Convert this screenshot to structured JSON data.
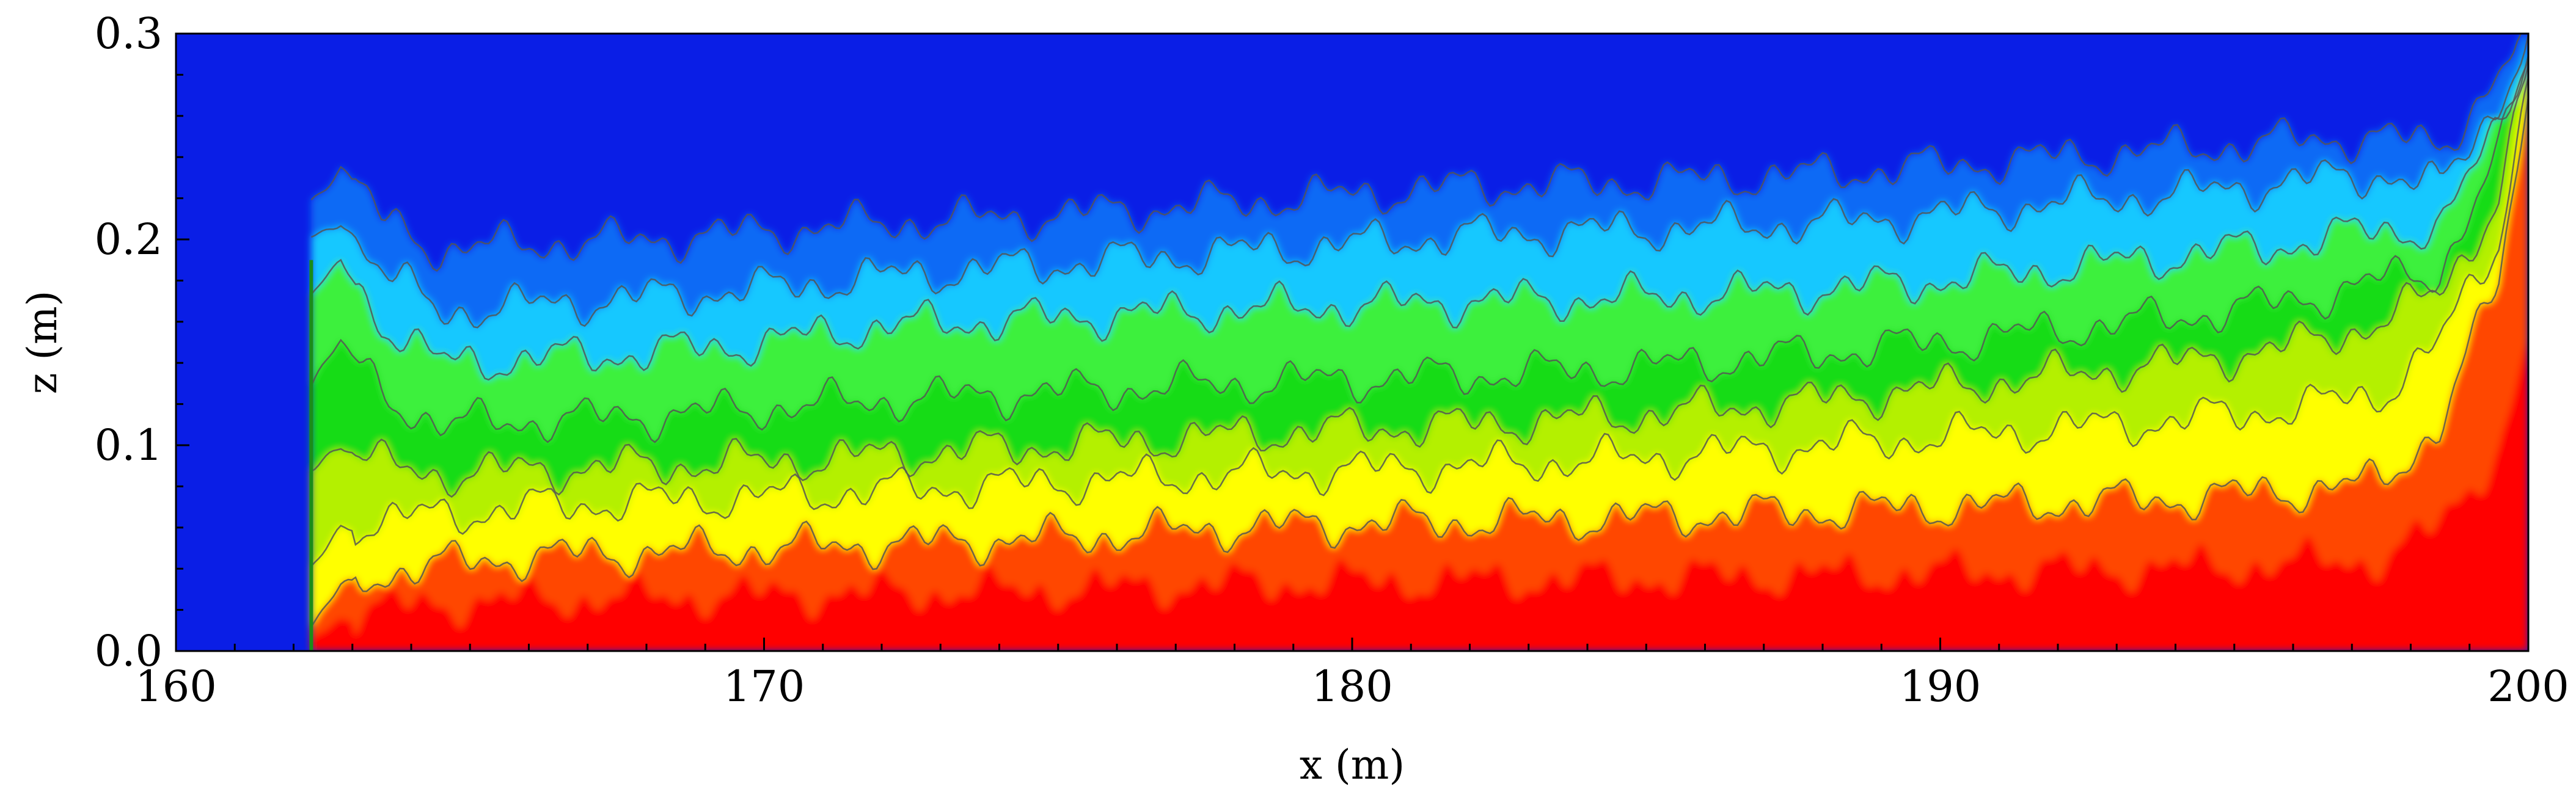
{
  "chart_data": {
    "type": "heatmap",
    "title": "",
    "xlabel": "x (m)",
    "ylabel": "z (m)",
    "xlim": [
      160,
      200
    ],
    "ylim": [
      0.0,
      0.3
    ],
    "x_ticks": [
      160,
      170,
      180,
      190,
      200
    ],
    "x_tick_labels": [
      "160",
      "170",
      "180",
      "190",
      "200"
    ],
    "y_ticks": [
      0.0,
      0.1,
      0.2,
      0.3
    ],
    "y_tick_labels": [
      "0.0",
      "0.1",
      "0.2",
      "0.3"
    ],
    "x_minor_step": 1,
    "y_minor_step": 0.02,
    "grid": false,
    "legend": "none",
    "colormap": [
      "#0a1ee6",
      "#0a6af5",
      "#19c8ff",
      "#1effd2",
      "#3cf03c",
      "#14dc14",
      "#b4f000",
      "#ffff00",
      "#ffa000",
      "#ff4600",
      "#ff0000"
    ],
    "contour_color": "#555555",
    "front_x": 162.3,
    "profile_x": [
      162.3,
      162.8,
      163.5,
      164.5,
      166,
      168,
      170,
      172,
      175,
      178,
      180,
      182,
      185,
      188,
      190,
      192,
      194,
      196,
      197.5,
      198.5,
      199.5,
      200
    ],
    "contour_levels": [
      {
        "name": "level-1",
        "z": [
          0.012,
          0.03,
          0.038,
          0.042,
          0.046,
          0.048,
          0.05,
          0.052,
          0.055,
          0.06,
          0.062,
          0.063,
          0.065,
          0.068,
          0.07,
          0.072,
          0.074,
          0.078,
          0.082,
          0.11,
          0.18,
          0.27
        ]
      },
      {
        "name": "level-2",
        "z": [
          0.04,
          0.06,
          0.064,
          0.066,
          0.07,
          0.073,
          0.075,
          0.078,
          0.082,
          0.086,
          0.088,
          0.09,
          0.094,
          0.1,
          0.104,
          0.108,
          0.112,
          0.118,
          0.125,
          0.15,
          0.2,
          0.28
        ]
      },
      {
        "name": "level-3",
        "z": [
          0.09,
          0.1,
          0.09,
          0.086,
          0.088,
          0.09,
          0.092,
          0.095,
          0.1,
          0.105,
          0.108,
          0.11,
          0.115,
          0.122,
          0.128,
          0.134,
          0.14,
          0.148,
          0.16,
          0.175,
          0.22,
          0.285
        ]
      },
      {
        "name": "level-4",
        "z": [
          0.13,
          0.15,
          0.125,
          0.11,
          0.112,
          0.114,
          0.118,
          0.122,
          0.126,
          0.13,
          0.132,
          0.134,
          0.138,
          0.145,
          0.15,
          0.156,
          0.162,
          0.17,
          0.18,
          0.185,
          0.24,
          0.29
        ]
      },
      {
        "name": "level-5",
        "z": [
          0.17,
          0.19,
          0.16,
          0.14,
          0.142,
          0.145,
          0.15,
          0.158,
          0.162,
          0.166,
          0.168,
          0.17,
          0.172,
          0.176,
          0.18,
          0.186,
          0.192,
          0.198,
          0.205,
          0.205,
          0.255,
          0.295
        ]
      },
      {
        "name": "level-6",
        "z": [
          0.2,
          0.21,
          0.185,
          0.165,
          0.168,
          0.172,
          0.176,
          0.182,
          0.188,
          0.194,
          0.198,
          0.202,
          0.205,
          0.208,
          0.212,
          0.218,
          0.222,
          0.228,
          0.232,
          0.225,
          0.268,
          0.298
        ]
      },
      {
        "name": "level-7",
        "z": [
          0.22,
          0.235,
          0.21,
          0.195,
          0.198,
          0.2,
          0.204,
          0.208,
          0.212,
          0.218,
          0.222,
          0.226,
          0.228,
          0.232,
          0.236,
          0.24,
          0.244,
          0.248,
          0.25,
          0.245,
          0.28,
          0.3
        ]
      }
    ]
  }
}
